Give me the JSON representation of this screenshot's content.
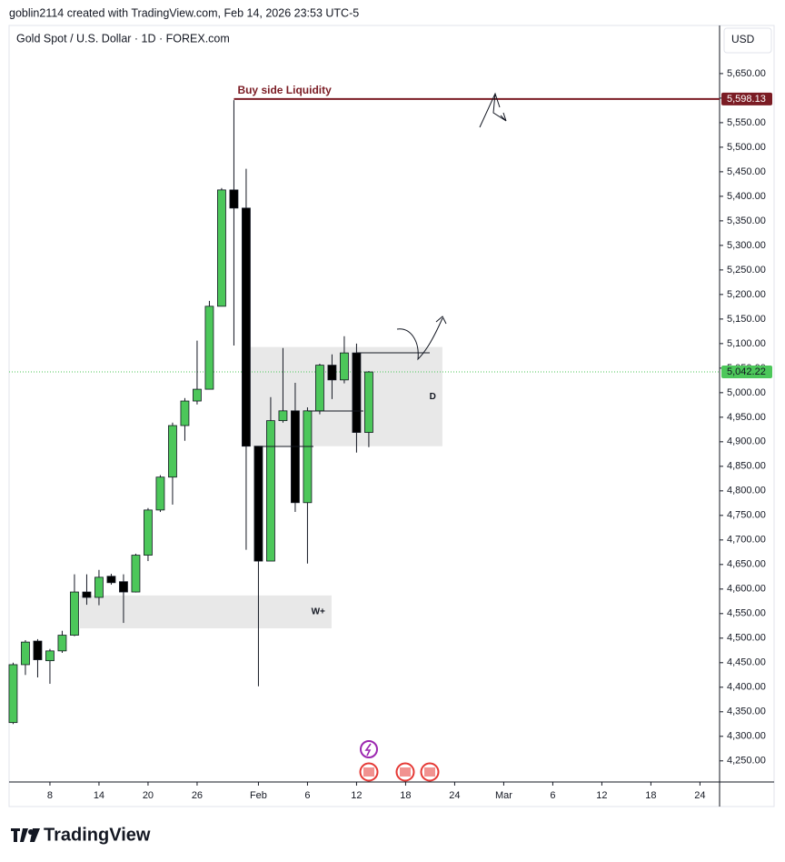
{
  "header": {
    "text": "goblin2114 created with TradingView.com, Feb 14, 2026 23:53 UTC-5"
  },
  "footer": {
    "brand": "TradingView"
  },
  "chart_data": {
    "type": "candlestick",
    "title": "Gold Spot / U.S. Dollar · 1D · FOREX.com",
    "currency": "USD",
    "up_color": "#4cc75a",
    "down_color": "#000000",
    "x": [
      -3,
      -2,
      -1,
      0,
      1,
      2,
      3,
      4,
      5,
      6,
      7,
      8,
      9,
      10,
      11,
      12,
      13,
      14,
      15,
      16,
      17,
      18,
      19,
      20,
      21,
      22,
      23,
      24,
      25,
      26
    ],
    "open": [
      4328,
      4446,
      4494,
      4454,
      4474,
      4506,
      4594,
      4583,
      4626,
      4615,
      4594,
      4669,
      4761,
      4828,
      4933,
      4983,
      5007,
      5176,
      5413,
      5376,
      4891,
      4657,
      4943,
      4963,
      4776,
      4963,
      5056,
      5026,
      5081,
      4919
    ],
    "high": [
      4450,
      4496,
      4498,
      4478,
      4515,
      4630,
      4630,
      4639,
      4631,
      4630,
      4672,
      4765,
      4832,
      4939,
      4989,
      5106,
      5187,
      5417,
      5596,
      5456,
      4891,
      4991,
      5091,
      5020,
      4970,
      5059,
      5078,
      5115,
      5100,
      5044
    ],
    "low": [
      4325,
      4425,
      4420,
      4407,
      4470,
      4504,
      4568,
      4567,
      4609,
      4531,
      4593,
      4657,
      4757,
      4772,
      4902,
      4976,
      5007,
      5176,
      5096,
      4680,
      4402,
      4657,
      4939,
      4757,
      4652,
      4956,
      4987,
      5019,
      4878,
      4889
    ],
    "close": [
      4446,
      4492,
      4456,
      4474,
      4506,
      4594,
      4583,
      4624,
      4613,
      4594,
      4669,
      4761,
      4828,
      4933,
      4983,
      5007,
      5176,
      5413,
      5376,
      4891,
      4657,
      4943,
      4963,
      4776,
      4963,
      5056,
      5026,
      5081,
      4919,
      5042.22
    ],
    "xlim": [
      -3.33,
      54.6
    ],
    "xticks": [
      {
        "value": 0,
        "label": "8"
      },
      {
        "value": 4,
        "label": "14"
      },
      {
        "value": 8,
        "label": "20"
      },
      {
        "value": 12,
        "label": "26"
      },
      {
        "value": 17,
        "label": "Feb"
      },
      {
        "value": 21,
        "label": "6"
      },
      {
        "value": 25,
        "label": "12"
      },
      {
        "value": 29,
        "label": "18"
      },
      {
        "value": 33,
        "label": "24"
      },
      {
        "value": 37,
        "label": "Mar"
      },
      {
        "value": 41,
        "label": "6"
      },
      {
        "value": 45,
        "label": "12"
      },
      {
        "value": 49,
        "label": "18"
      },
      {
        "value": 53,
        "label": "24"
      }
    ],
    "ylim": [
      4207,
      5748
    ],
    "yticks": [
      {
        "value": 4250,
        "label": "4,250.00"
      },
      {
        "value": 4300,
        "label": "4,300.00"
      },
      {
        "value": 4350,
        "label": "4,350.00"
      },
      {
        "value": 4400,
        "label": "4,400.00"
      },
      {
        "value": 4450,
        "label": "4,450.00"
      },
      {
        "value": 4500,
        "label": "4,500.00"
      },
      {
        "value": 4550,
        "label": "4,550.00"
      },
      {
        "value": 4600,
        "label": "4,600.00"
      },
      {
        "value": 4650,
        "label": "4,650.00"
      },
      {
        "value": 4700,
        "label": "4,700.00"
      },
      {
        "value": 4750,
        "label": "4,750.00"
      },
      {
        "value": 4800,
        "label": "4,800.00"
      },
      {
        "value": 4850,
        "label": "4,850.00"
      },
      {
        "value": 4900,
        "label": "4,900.00"
      },
      {
        "value": 4950,
        "label": "4,950.00"
      },
      {
        "value": 5000,
        "label": "5,000.00"
      },
      {
        "value": 5050,
        "label": "5,050.00"
      },
      {
        "value": 5100,
        "label": "5,100.00"
      },
      {
        "value": 5150,
        "label": "5,150.00"
      },
      {
        "value": 5200,
        "label": "5,200.00"
      },
      {
        "value": 5250,
        "label": "5,250.00"
      },
      {
        "value": 5300,
        "label": "5,300.00"
      },
      {
        "value": 5350,
        "label": "5,350.00"
      },
      {
        "value": 5400,
        "label": "5,400.00"
      },
      {
        "value": 5450,
        "label": "5,450.00"
      },
      {
        "value": 5500,
        "label": "5,500.00"
      },
      {
        "value": 5550,
        "label": "5,550.00"
      },
      {
        "value": 5600,
        "label": "5,600.00"
      },
      {
        "value": 5650,
        "label": "5,650.00"
      }
    ],
    "zones": [
      {
        "label": "D",
        "x": [
          16.3,
          32
        ],
        "y": [
          4891,
          5093
        ]
      },
      {
        "label": "W+",
        "x": [
          2.44,
          22.96
        ],
        "y": [
          4520,
          4587
        ]
      }
    ],
    "levels": [
      {
        "name": "Buy side Liquidity",
        "value": 5598.13,
        "value_label": "5,598.13",
        "color": "#7b1c24",
        "from": 15
      }
    ],
    "last_price": {
      "value": 5042.22,
      "label": "5,042.22",
      "color": "#4cc75a"
    }
  }
}
